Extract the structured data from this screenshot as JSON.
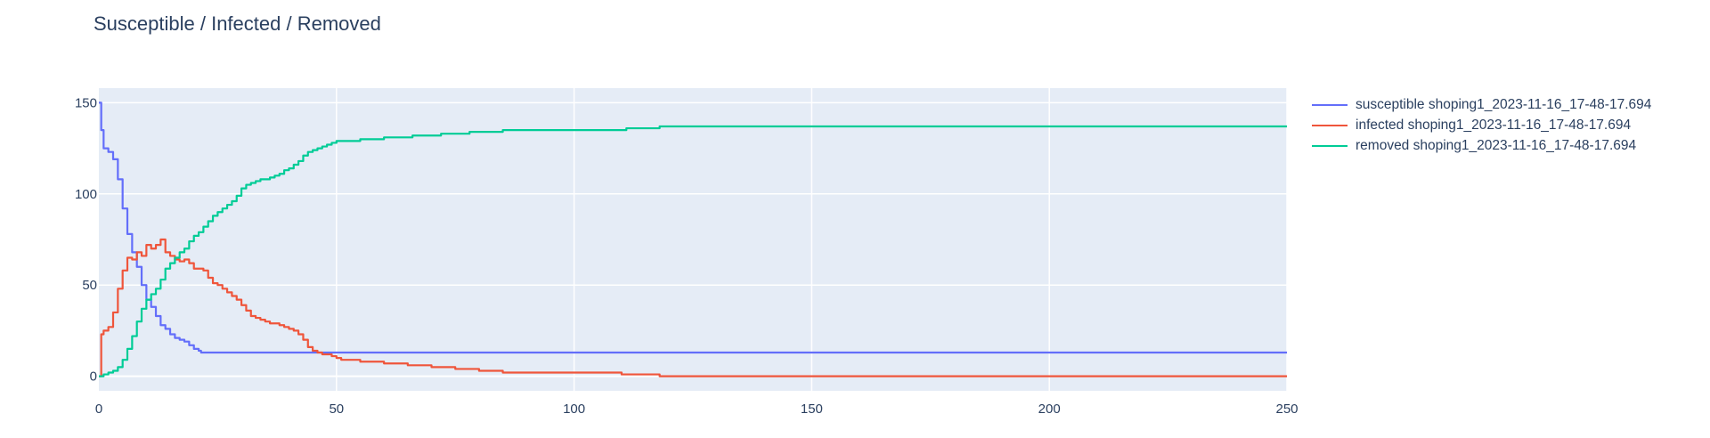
{
  "chart_data": {
    "type": "line",
    "title": "Susceptible / Infected / Removed",
    "xlabel": "",
    "ylabel": "",
    "xlim": [
      0,
      250
    ],
    "ylim": [
      -8,
      158
    ],
    "xticks": [
      0,
      50,
      100,
      150,
      200,
      250
    ],
    "yticks": [
      0,
      50,
      100,
      150
    ],
    "grid": true,
    "legend_position": "right",
    "series": [
      {
        "name": "susceptible shoping1_2023-11-16_17-48-17.694",
        "color": "#636efa",
        "points": [
          [
            0,
            150
          ],
          [
            0.5,
            135
          ],
          [
            1,
            125
          ],
          [
            2,
            123
          ],
          [
            3,
            119
          ],
          [
            4,
            108
          ],
          [
            5,
            92
          ],
          [
            6,
            78
          ],
          [
            7,
            68
          ],
          [
            8,
            60
          ],
          [
            9,
            50
          ],
          [
            10,
            42
          ],
          [
            11,
            38
          ],
          [
            12,
            33
          ],
          [
            13,
            28
          ],
          [
            14,
            26
          ],
          [
            15,
            23
          ],
          [
            16,
            21
          ],
          [
            17,
            20
          ],
          [
            18,
            19
          ],
          [
            19,
            17
          ],
          [
            20,
            15
          ],
          [
            21,
            14
          ],
          [
            21.5,
            13
          ],
          [
            250,
            13
          ]
        ]
      },
      {
        "name": "infected shoping1_2023-11-16_17-48-17.694",
        "color": "#ef553b",
        "points": [
          [
            0,
            0
          ],
          [
            0.5,
            23
          ],
          [
            1,
            25
          ],
          [
            2,
            27
          ],
          [
            3,
            35
          ],
          [
            4,
            48
          ],
          [
            5,
            58
          ],
          [
            6,
            65
          ],
          [
            7,
            64
          ],
          [
            8,
            68
          ],
          [
            9,
            66
          ],
          [
            10,
            72
          ],
          [
            11,
            70
          ],
          [
            12,
            72
          ],
          [
            13,
            75
          ],
          [
            14,
            68
          ],
          [
            15,
            66
          ],
          [
            16,
            64
          ],
          [
            17,
            63
          ],
          [
            18,
            64
          ],
          [
            19,
            62
          ],
          [
            20,
            59
          ],
          [
            21,
            59
          ],
          [
            22,
            58
          ],
          [
            23,
            54
          ],
          [
            24,
            51
          ],
          [
            25,
            50
          ],
          [
            26,
            48
          ],
          [
            27,
            46
          ],
          [
            28,
            44
          ],
          [
            29,
            42
          ],
          [
            30,
            39
          ],
          [
            31,
            36
          ],
          [
            32,
            33
          ],
          [
            33,
            32
          ],
          [
            34,
            31
          ],
          [
            35,
            30
          ],
          [
            36,
            29
          ],
          [
            37,
            29
          ],
          [
            38,
            28
          ],
          [
            39,
            27
          ],
          [
            40,
            26
          ],
          [
            41,
            25
          ],
          [
            42,
            23
          ],
          [
            43,
            20
          ],
          [
            44,
            16
          ],
          [
            45,
            14
          ],
          [
            46,
            13
          ],
          [
            47,
            12
          ],
          [
            48,
            12
          ],
          [
            49,
            11
          ],
          [
            50,
            10
          ],
          [
            51,
            9
          ],
          [
            55,
            8
          ],
          [
            60,
            7
          ],
          [
            65,
            6
          ],
          [
            70,
            5
          ],
          [
            75,
            4
          ],
          [
            80,
            3
          ],
          [
            85,
            2
          ],
          [
            108,
            2
          ],
          [
            110,
            1
          ],
          [
            117,
            1
          ],
          [
            118,
            0
          ],
          [
            250,
            0
          ]
        ]
      },
      {
        "name": "removed shoping1_2023-11-16_17-48-17.694",
        "color": "#00cc96",
        "points": [
          [
            0,
            0
          ],
          [
            1,
            1
          ],
          [
            2,
            2
          ],
          [
            3,
            3
          ],
          [
            4,
            5
          ],
          [
            5,
            9
          ],
          [
            6,
            15
          ],
          [
            7,
            22
          ],
          [
            8,
            30
          ],
          [
            9,
            37
          ],
          [
            10,
            42
          ],
          [
            11,
            45
          ],
          [
            12,
            48
          ],
          [
            13,
            53
          ],
          [
            14,
            59
          ],
          [
            15,
            62
          ],
          [
            16,
            65
          ],
          [
            17,
            68
          ],
          [
            18,
            70
          ],
          [
            19,
            74
          ],
          [
            20,
            77
          ],
          [
            21,
            79
          ],
          [
            22,
            82
          ],
          [
            23,
            85
          ],
          [
            24,
            88
          ],
          [
            25,
            90
          ],
          [
            26,
            92
          ],
          [
            27,
            94
          ],
          [
            28,
            96
          ],
          [
            29,
            99
          ],
          [
            30,
            103
          ],
          [
            31,
            105
          ],
          [
            32,
            106
          ],
          [
            33,
            107
          ],
          [
            34,
            108
          ],
          [
            35,
            108
          ],
          [
            36,
            109
          ],
          [
            37,
            110
          ],
          [
            38,
            111
          ],
          [
            39,
            113
          ],
          [
            40,
            114
          ],
          [
            41,
            116
          ],
          [
            42,
            118
          ],
          [
            43,
            121
          ],
          [
            44,
            123
          ],
          [
            45,
            124
          ],
          [
            46,
            125
          ],
          [
            47,
            126
          ],
          [
            48,
            127
          ],
          [
            49,
            128
          ],
          [
            50,
            129
          ],
          [
            55,
            130
          ],
          [
            60,
            131
          ],
          [
            66,
            132
          ],
          [
            72,
            133
          ],
          [
            78,
            134
          ],
          [
            85,
            135
          ],
          [
            110,
            135
          ],
          [
            111,
            136
          ],
          [
            118,
            137
          ],
          [
            250,
            137
          ]
        ]
      }
    ]
  }
}
